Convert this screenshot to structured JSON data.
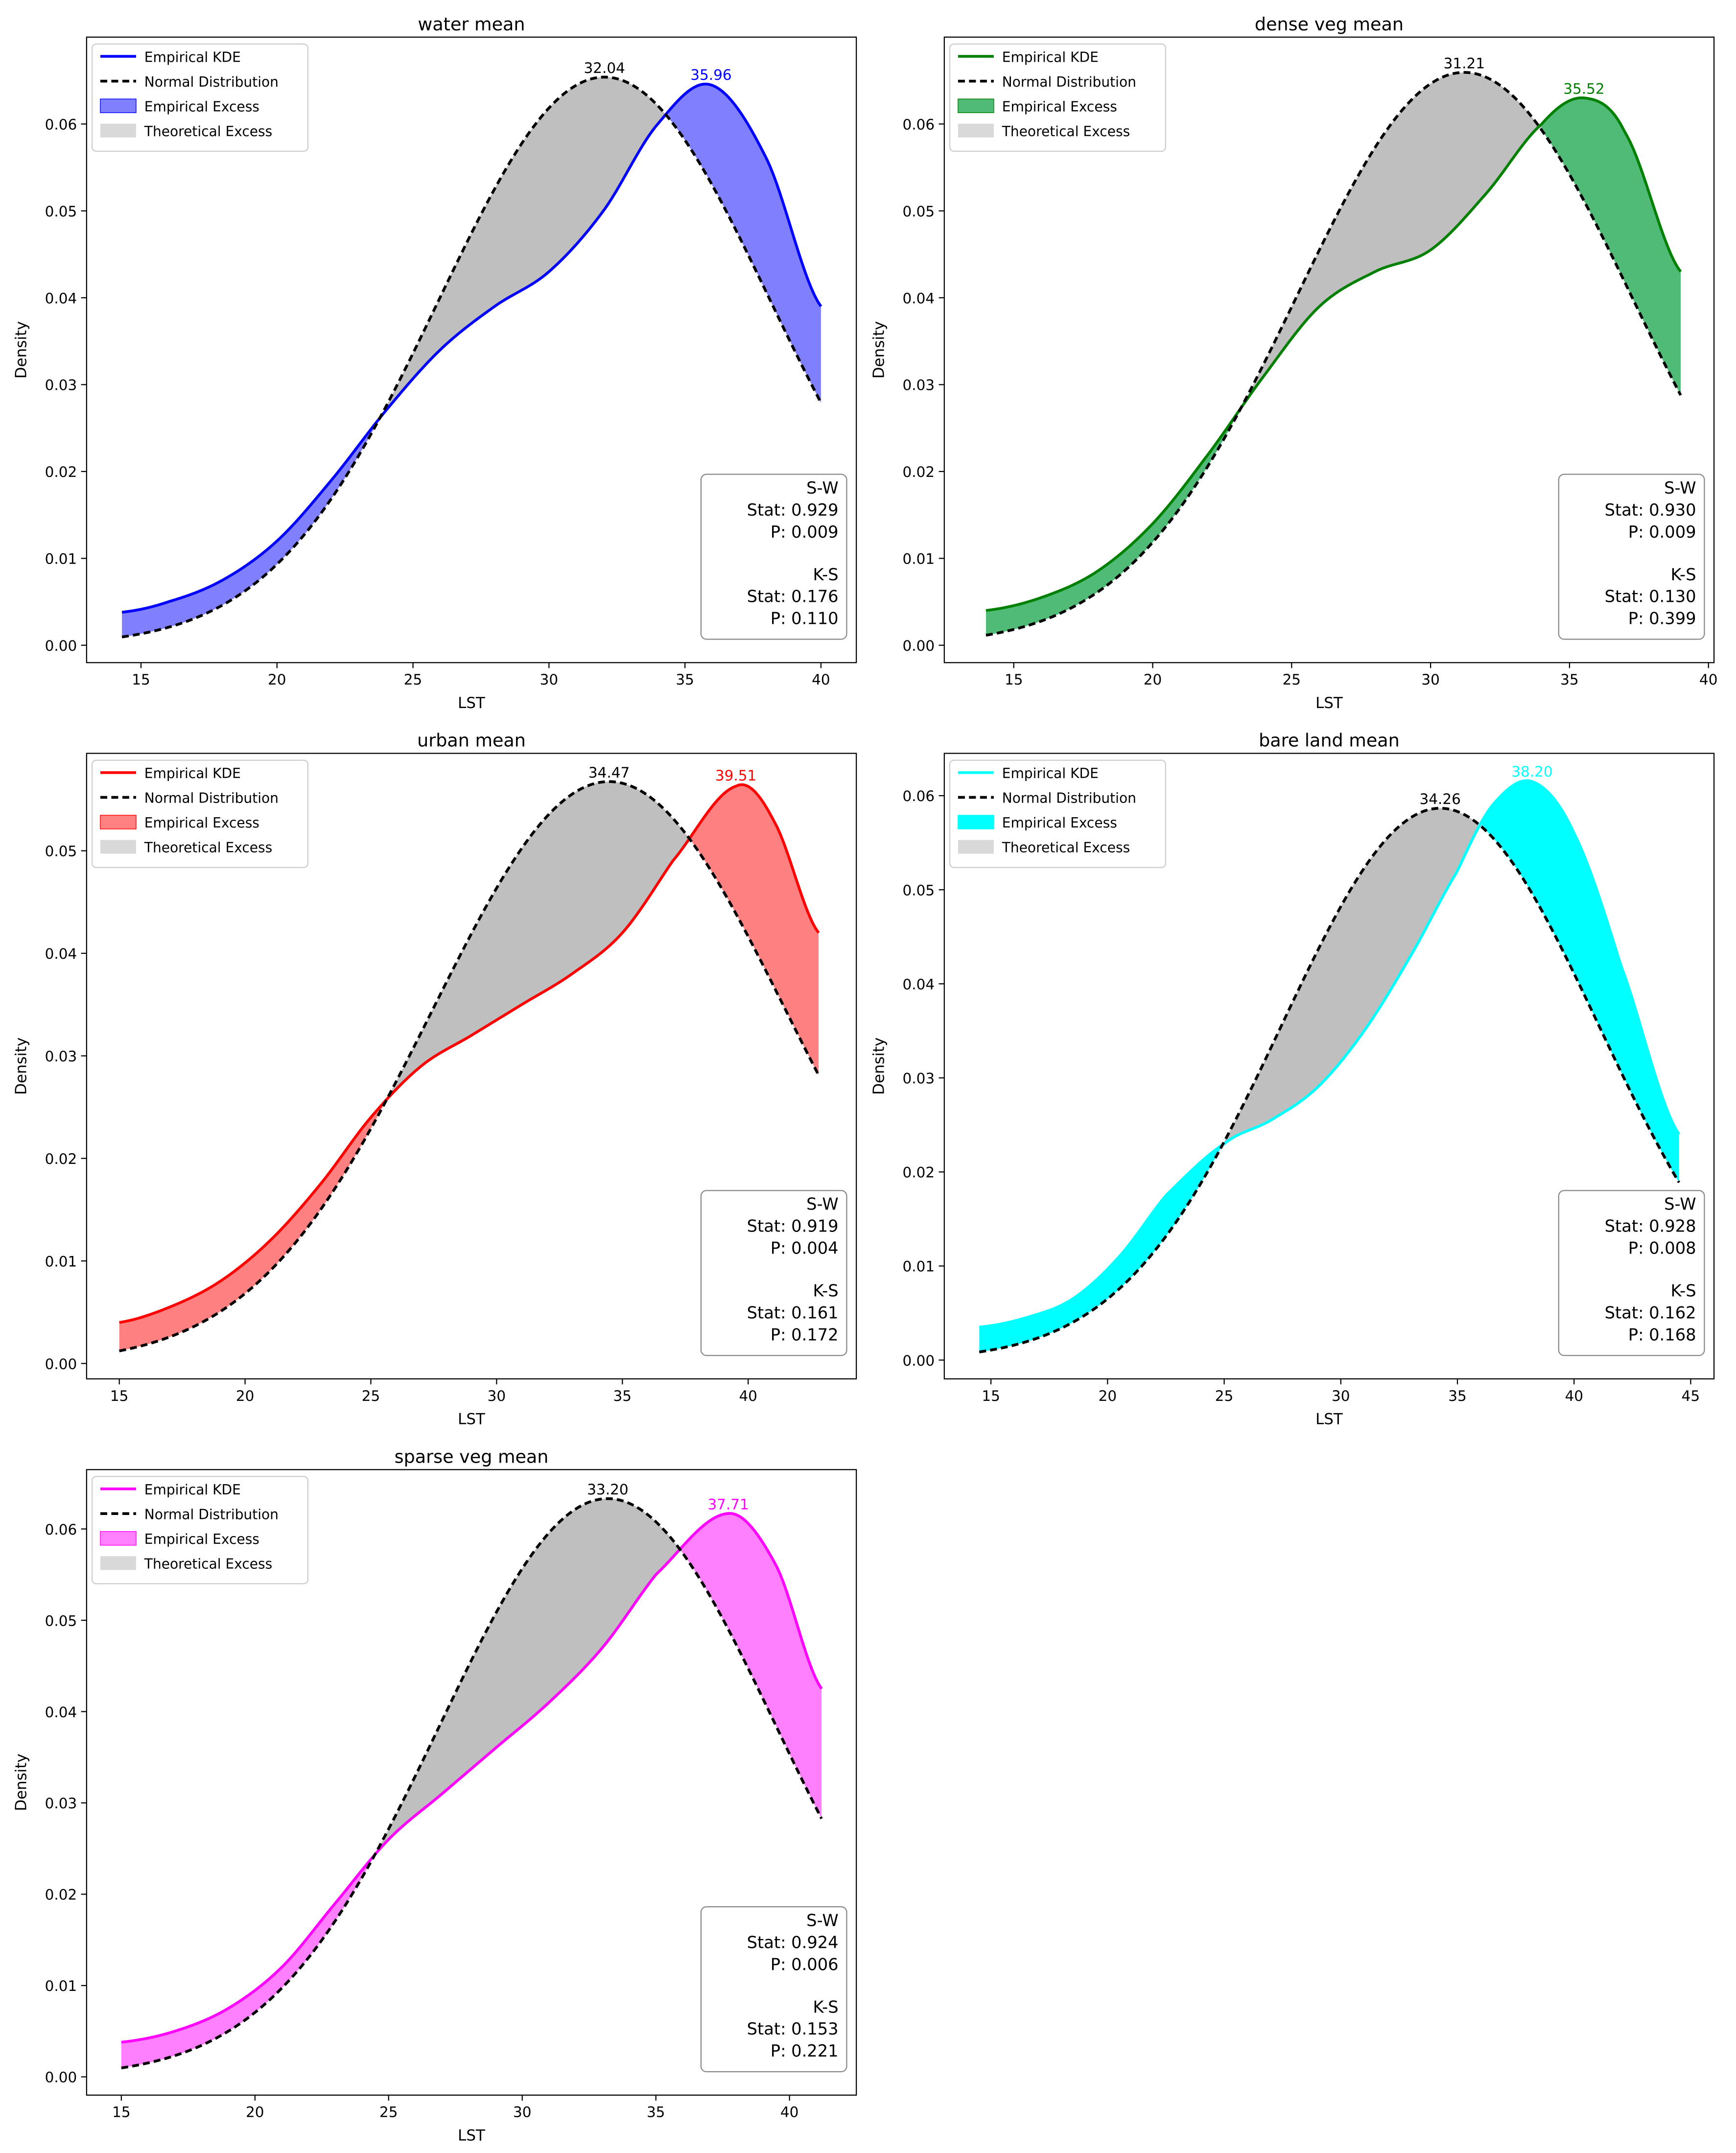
{
  "chart_data": [
    {
      "type": "line",
      "title": "water mean",
      "xlabel": "LST",
      "ylabel": "Density",
      "xlim": [
        13.0,
        41.3
      ],
      "ylim": [
        -0.002,
        0.07
      ],
      "xticks": [
        "15",
        "20",
        "25",
        "30",
        "35",
        "40"
      ],
      "yticks": [
        "0.00",
        "0.01",
        "0.02",
        "0.03",
        "0.04",
        "0.05",
        "0.06"
      ],
      "legend": [
        "Empirical KDE",
        "Normal Distribution",
        "Empirical Excess",
        "Theoretical Excess"
      ],
      "color": "#0000ff",
      "fill_color": "#8080ff",
      "x_range": [
        14.3,
        40.0
      ],
      "normal": {
        "mean": 32.04,
        "sd": 6.1
      },
      "kde": {
        "x": [
          14.3,
          16.0,
          18.0,
          20.0,
          22.0,
          24.0,
          26.0,
          28.0,
          30.0,
          32.0,
          34.0,
          35.96,
          38.0,
          40.0
        ],
        "y": [
          0.0038,
          0.005,
          0.0075,
          0.012,
          0.019,
          0.027,
          0.034,
          0.039,
          0.043,
          0.05,
          0.06,
          0.0645,
          0.056,
          0.039
        ]
      },
      "empirical_peak_label": "35.96",
      "normal_peak_label": "32.04",
      "stats_lines": [
        "S-W",
        "Stat: 0.929",
        "P: 0.009",
        "K-S",
        "Stat: 0.176",
        "P: 0.110"
      ]
    },
    {
      "type": "line",
      "title": "dense veg mean",
      "xlabel": "LST",
      "ylabel": "Density",
      "xlim": [
        12.5,
        40.2
      ],
      "ylim": [
        -0.002,
        0.07
      ],
      "xticks": [
        "15",
        "20",
        "25",
        "30",
        "35",
        "40"
      ],
      "yticks": [
        "0.00",
        "0.01",
        "0.02",
        "0.03",
        "0.04",
        "0.05",
        "0.06"
      ],
      "legend": [
        "Empirical KDE",
        "Normal Distribution",
        "Empirical Excess",
        "Theoretical Excess"
      ],
      "color": "#008000",
      "fill_color": "#50bb76",
      "x_range": [
        14.0,
        39.0
      ],
      "normal": {
        "mean": 31.21,
        "sd": 6.05
      },
      "kde": {
        "x": [
          14.0,
          16.0,
          18.0,
          20.0,
          22.0,
          24.0,
          26.0,
          28.0,
          30.0,
          32.0,
          34.0,
          35.52,
          37.0,
          39.0
        ],
        "y": [
          0.004,
          0.0055,
          0.0085,
          0.014,
          0.022,
          0.031,
          0.039,
          0.043,
          0.0455,
          0.052,
          0.06,
          0.063,
          0.059,
          0.043
        ]
      },
      "empirical_peak_label": "35.52",
      "normal_peak_label": "31.21",
      "stats_lines": [
        "S-W",
        "Stat: 0.930",
        "P: 0.009",
        "K-S",
        "Stat: 0.130",
        "P: 0.399"
      ]
    },
    {
      "type": "line",
      "title": "urban mean",
      "xlabel": "LST",
      "ylabel": "Density",
      "xlim": [
        13.7,
        44.3
      ],
      "ylim": [
        -0.0015,
        0.0595
      ],
      "xticks": [
        "15",
        "20",
        "25",
        "30",
        "35",
        "40"
      ],
      "yticks": [
        "0.00",
        "0.01",
        "0.02",
        "0.03",
        "0.04",
        "0.05"
      ],
      "legend": [
        "Empirical KDE",
        "Normal Distribution",
        "Empirical Excess",
        "Theoretical Excess"
      ],
      "color": "#ff0000",
      "fill_color": "#ff8080",
      "x_range": [
        15.0,
        42.8
      ],
      "normal": {
        "mean": 34.47,
        "sd": 7.03
      },
      "kde": {
        "x": [
          15.0,
          17.0,
          19.0,
          21.0,
          23.0,
          25.0,
          27.0,
          29.0,
          31.0,
          33.0,
          35.0,
          37.0,
          39.51,
          41.0,
          42.8
        ],
        "y": [
          0.004,
          0.0055,
          0.008,
          0.012,
          0.0175,
          0.024,
          0.029,
          0.032,
          0.035,
          0.038,
          0.042,
          0.049,
          0.0563,
          0.053,
          0.042
        ]
      },
      "empirical_peak_label": "39.51",
      "normal_peak_label": "34.47",
      "stats_lines": [
        "S-W",
        "Stat: 0.919",
        "P: 0.004",
        "K-S",
        "Stat: 0.161",
        "P: 0.172"
      ]
    },
    {
      "type": "line",
      "title": "bare land mean",
      "xlabel": "LST",
      "ylabel": "Density",
      "xlim": [
        13.0,
        46.0
      ],
      "ylim": [
        -0.002,
        0.0645
      ],
      "xticks": [
        "15",
        "20",
        "25",
        "30",
        "35",
        "40",
        "45"
      ],
      "yticks": [
        "0.00",
        "0.01",
        "0.02",
        "0.03",
        "0.04",
        "0.05",
        "0.06"
      ],
      "legend": [
        "Empirical KDE",
        "Normal Distribution",
        "Empirical Excess",
        "Theoretical Excess"
      ],
      "color": "#00ffff",
      "fill_color": "#00ffff",
      "x_range": [
        14.5,
        44.5
      ],
      "normal": {
        "mean": 34.26,
        "sd": 6.8
      },
      "kde": {
        "x": [
          14.5,
          16.5,
          18.5,
          20.5,
          22.5,
          25.0,
          27.0,
          29.0,
          31.0,
          33.0,
          35.0,
          36.5,
          38.2,
          40.0,
          42.0,
          44.5
        ],
        "y": [
          0.0035,
          0.0045,
          0.0065,
          0.011,
          0.0175,
          0.023,
          0.0255,
          0.029,
          0.035,
          0.043,
          0.052,
          0.059,
          0.0615,
          0.056,
          0.042,
          0.024
        ]
      },
      "empirical_peak_label": "38.20",
      "normal_peak_label": "34.26",
      "stats_lines": [
        "S-W",
        "Stat: 0.928",
        "P: 0.008",
        "K-S",
        "Stat: 0.162",
        "P: 0.168"
      ]
    },
    {
      "type": "line",
      "title": "sparse veg mean",
      "xlabel": "LST",
      "ylabel": "Density",
      "xlim": [
        13.7,
        42.5
      ],
      "ylim": [
        -0.002,
        0.0665
      ],
      "xticks": [
        "15",
        "20",
        "25",
        "30",
        "35",
        "40"
      ],
      "yticks": [
        "0.00",
        "0.01",
        "0.02",
        "0.03",
        "0.04",
        "0.05",
        "0.06"
      ],
      "legend": [
        "Empirical KDE",
        "Normal Distribution",
        "Empirical Excess",
        "Theoretical Excess"
      ],
      "color": "#ff00ff",
      "fill_color": "#ff80ff",
      "x_range": [
        15.0,
        41.2
      ],
      "normal": {
        "mean": 33.2,
        "sd": 6.3
      },
      "kde": {
        "x": [
          15.0,
          17.0,
          19.0,
          21.0,
          23.0,
          25.0,
          27.0,
          29.0,
          31.0,
          33.0,
          35.0,
          37.71,
          39.5,
          41.2
        ],
        "y": [
          0.0038,
          0.005,
          0.0075,
          0.012,
          0.019,
          0.026,
          0.031,
          0.036,
          0.041,
          0.047,
          0.055,
          0.0617,
          0.056,
          0.0425
        ]
      },
      "empirical_peak_label": "37.71",
      "normal_peak_label": "33.20",
      "stats_lines": [
        "S-W",
        "Stat: 0.924",
        "P: 0.006",
        "K-S",
        "Stat: 0.153",
        "P: 0.221"
      ]
    }
  ]
}
